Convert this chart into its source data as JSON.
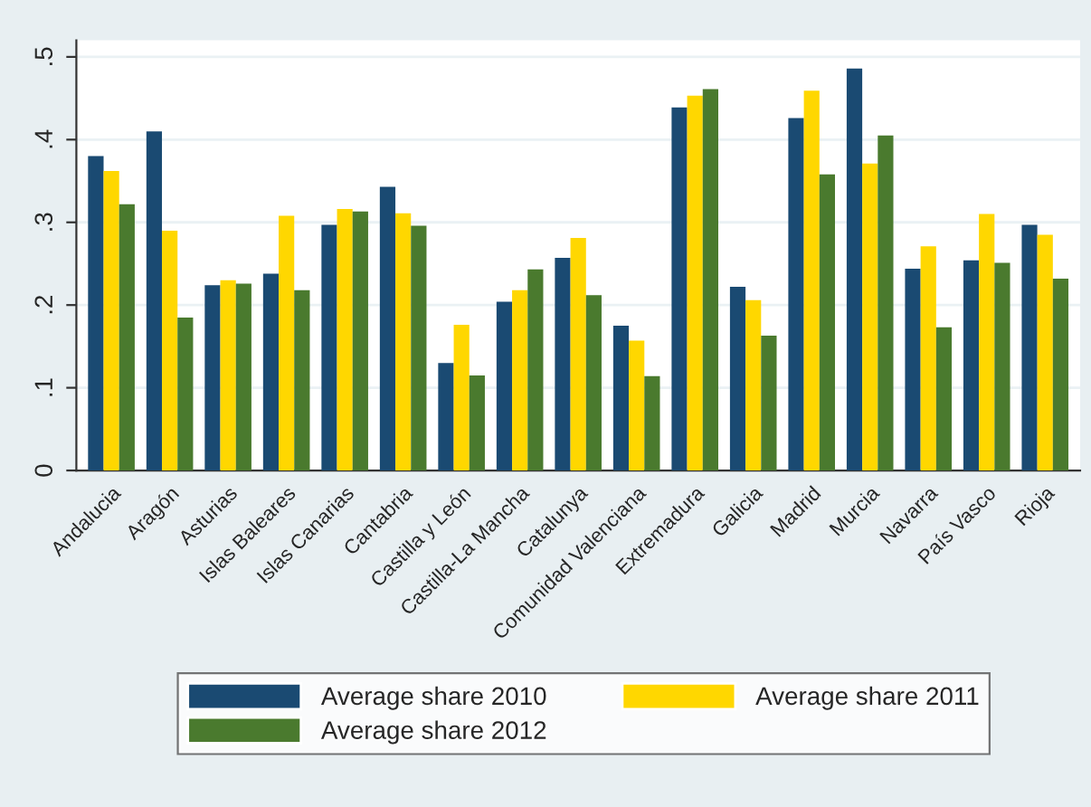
{
  "chart_data": {
    "type": "bar",
    "categories": [
      "Andalucia",
      "Aragón",
      "Asturias",
      "Islas Baleares",
      "Islas Canarias",
      "Cantabria",
      "Castilla y León",
      "Castilla-La Mancha",
      "Catalunya",
      "Comunidad Valenciana",
      "Extremadura",
      "Galicia",
      "Madrid",
      "Murcia",
      "Navarra",
      "País Vasco",
      "Rioja"
    ],
    "series": [
      {
        "name": "Average share 2010",
        "color": "#1a4a72",
        "values": [
          0.38,
          0.41,
          0.224,
          0.238,
          0.297,
          0.343,
          0.13,
          0.204,
          0.257,
          0.175,
          0.439,
          0.222,
          0.426,
          0.486,
          0.244,
          0.254,
          0.297
        ]
      },
      {
        "name": "Average share 2011",
        "color": "#ffd700",
        "values": [
          0.362,
          0.29,
          0.23,
          0.308,
          0.316,
          0.311,
          0.176,
          0.218,
          0.281,
          0.157,
          0.453,
          0.206,
          0.459,
          0.371,
          0.271,
          0.31,
          0.285
        ]
      },
      {
        "name": "Average share 2012",
        "color": "#4a7a2e",
        "values": [
          0.322,
          0.185,
          0.226,
          0.218,
          0.313,
          0.296,
          0.115,
          0.243,
          0.212,
          0.114,
          0.461,
          0.163,
          0.358,
          0.405,
          0.173,
          0.251,
          0.232
        ]
      }
    ],
    "ylim": [
      0,
      0.52
    ],
    "yticks": [
      {
        "value": 0,
        "label": "0"
      },
      {
        "value": 0.1,
        "label": ".1"
      },
      {
        "value": 0.2,
        "label": ".2"
      },
      {
        "value": 0.3,
        "label": ".3"
      },
      {
        "value": 0.4,
        "label": ".4"
      },
      {
        "value": 0.5,
        "label": ".5"
      }
    ],
    "grid": "y",
    "legend": "bottom"
  }
}
